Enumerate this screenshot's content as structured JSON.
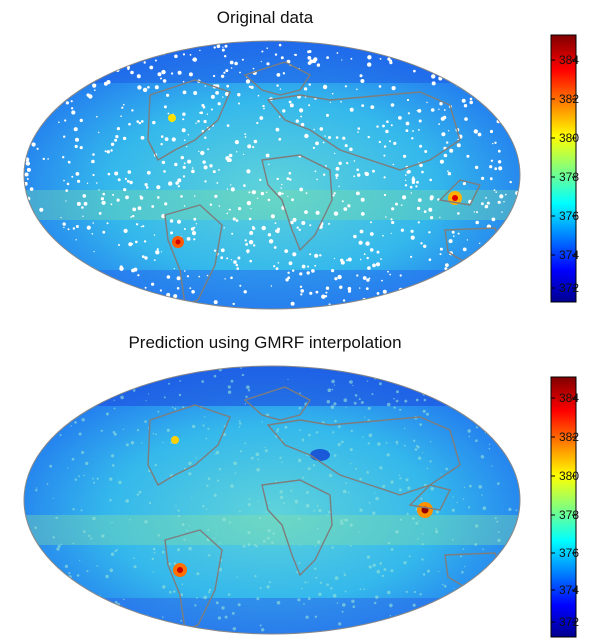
{
  "panels": [
    {
      "title": "Original data",
      "colorbar": {
        "ticks": [
          "384",
          "382",
          "380",
          "378",
          "376",
          "374",
          "372"
        ]
      }
    },
    {
      "title": "Prediction using GMRF interpolation",
      "colorbar": {
        "ticks": [
          "384",
          "382",
          "380",
          "378",
          "376",
          "374",
          "372"
        ]
      }
    }
  ],
  "colors": {
    "ocean_fill": "#3fc3e6",
    "coastline": "#808080",
    "colormap": "jet"
  }
}
